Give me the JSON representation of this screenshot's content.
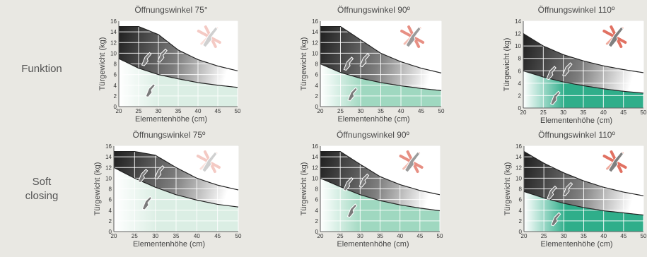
{
  "rows": [
    {
      "label_lines": [
        "Funktion"
      ]
    },
    {
      "label_lines": [
        "Soft",
        "closing"
      ]
    }
  ],
  "colors": {
    "background": "#e9e8e3",
    "curve": "#222222",
    "grid": "#ffffff",
    "door_icon": "#7a7a7a",
    "arrow_icon": "#e06a5a"
  },
  "chart_data": [
    {
      "row": 0,
      "type": "area",
      "title": "Öffnungswinkel 75°",
      "xlabel": "Elementenhöhe (cm)",
      "ylabel": "Türgewicht (kg)",
      "xlim": [
        20,
        50
      ],
      "ylim": [
        0,
        16
      ],
      "xticks": [
        20,
        25,
        30,
        35,
        40,
        45,
        50
      ],
      "yticks": [
        0,
        2,
        4,
        6,
        8,
        10,
        12,
        14,
        16
      ],
      "upper_curve": {
        "x": [
          20,
          25,
          30,
          35,
          40,
          45,
          50
        ],
        "y": [
          15,
          15,
          13.5,
          10.6,
          8.8,
          7.6,
          6.7
        ]
      },
      "lower_curve": {
        "x": [
          20,
          25,
          30,
          35,
          40,
          45,
          50
        ],
        "y": [
          9,
          7.2,
          6,
          5.2,
          4.5,
          4,
          3.6
        ]
      },
      "fill_color": "#dbeee4",
      "arrow_opacity": 0.35
    },
    {
      "row": 0,
      "type": "area",
      "title": "Öffnungswinkel 90º",
      "xlabel": "Elementenhöhe (cm)",
      "ylabel": "Türgewicht (kg)",
      "xlim": [
        20,
        50
      ],
      "ylim": [
        0,
        16
      ],
      "xticks": [
        20,
        25,
        30,
        35,
        40,
        45,
        50
      ],
      "yticks": [
        0,
        2,
        4,
        6,
        8,
        10,
        12,
        14,
        16
      ],
      "upper_curve": {
        "x": [
          20,
          25,
          30,
          35,
          40,
          45,
          50
        ],
        "y": [
          15,
          15,
          12.5,
          10,
          8.4,
          7.2,
          6.3
        ]
      },
      "lower_curve": {
        "x": [
          20,
          25,
          30,
          35,
          40,
          45,
          50
        ],
        "y": [
          8,
          6.4,
          5.3,
          4.5,
          3.9,
          3.4,
          3
        ]
      },
      "fill_color": "#9fd8c0",
      "arrow_opacity": 0.75
    },
    {
      "row": 0,
      "type": "area",
      "title": "Öffnungswinkel 110º",
      "xlabel": "Elementenhöhe (cm)",
      "ylabel": "Türgewicht (kg)",
      "xlim": [
        20,
        50
      ],
      "ylim": [
        0,
        14
      ],
      "xticks": [
        20,
        25,
        30,
        35,
        40,
        45,
        50
      ],
      "yticks": [
        0,
        2,
        4,
        6,
        8,
        10,
        12,
        14
      ],
      "upper_curve": {
        "x": [
          20,
          25,
          30,
          35,
          40,
          45,
          50
        ],
        "y": [
          12,
          10,
          8.6,
          7.6,
          6.8,
          6.2,
          5.7
        ]
      },
      "lower_curve": {
        "x": [
          20,
          25,
          30,
          35,
          40,
          45,
          50
        ],
        "y": [
          6,
          5,
          4.2,
          3.6,
          3.1,
          2.7,
          2.4
        ]
      },
      "fill_color": "#2fae8a",
      "arrow_opacity": 0.95
    },
    {
      "row": 1,
      "type": "area",
      "title": "Öffnungswinkel  75º",
      "xlabel": "Elementenhöhe (cm)",
      "ylabel": "Türgewicht (kg)",
      "xlim": [
        20,
        50
      ],
      "ylim": [
        0,
        16
      ],
      "xticks": [
        20,
        25,
        30,
        35,
        40,
        45,
        50
      ],
      "yticks": [
        0,
        2,
        4,
        6,
        8,
        10,
        12,
        14,
        16
      ],
      "upper_curve": {
        "x": [
          20,
          25,
          30,
          35,
          40,
          45,
          50
        ],
        "y": [
          15,
          15,
          14.3,
          12,
          10,
          8.7,
          7.8
        ]
      },
      "lower_curve": {
        "x": [
          20,
          25,
          30,
          35,
          40,
          45,
          50
        ],
        "y": [
          12,
          10,
          8.3,
          6.9,
          5.9,
          5.1,
          4.6
        ]
      },
      "fill_color": "#dbeee4",
      "arrow_opacity": 0.35
    },
    {
      "row": 1,
      "type": "area",
      "title": "Öffnungswinkel  90º",
      "xlabel": "Elementenhöhe (cm)",
      "ylabel": "Türgewicht (kg)",
      "xlim": [
        20,
        50
      ],
      "ylim": [
        0,
        16
      ],
      "xticks": [
        20,
        25,
        30,
        35,
        40,
        45,
        50
      ],
      "yticks": [
        0,
        2,
        4,
        6,
        8,
        10,
        12,
        14,
        16
      ],
      "upper_curve": {
        "x": [
          20,
          25,
          30,
          35,
          40,
          45,
          50
        ],
        "y": [
          15,
          15,
          12.6,
          10.3,
          8.8,
          7.7,
          6.9
        ]
      },
      "lower_curve": {
        "x": [
          20,
          25,
          30,
          35,
          40,
          45,
          50
        ],
        "y": [
          10,
          8.4,
          6.9,
          5.8,
          5,
          4.4,
          3.9
        ]
      },
      "fill_color": "#9fd8c0",
      "arrow_opacity": 0.75
    },
    {
      "row": 1,
      "type": "area",
      "title": "Öffnungswinkel  110º",
      "xlabel": "Elementenhöhe (cm)",
      "ylabel": "Türgewicht (kg)",
      "xlim": [
        20,
        50
      ],
      "ylim": [
        0,
        16
      ],
      "xticks": [
        20,
        25,
        30,
        35,
        40,
        45,
        50
      ],
      "yticks": [
        0,
        2,
        4,
        6,
        8,
        10,
        12,
        14,
        16
      ],
      "upper_curve": {
        "x": [
          20,
          25,
          30,
          35,
          40,
          45,
          50
        ],
        "y": [
          15,
          12.8,
          11,
          9.5,
          8.3,
          7.4,
          6.7
        ]
      },
      "lower_curve": {
        "x": [
          20,
          25,
          30,
          35,
          40,
          45,
          50
        ],
        "y": [
          7.5,
          6.3,
          5.3,
          4.5,
          3.9,
          3.5,
          3.1
        ]
      },
      "fill_color": "#2fae8a",
      "arrow_opacity": 0.95
    }
  ]
}
